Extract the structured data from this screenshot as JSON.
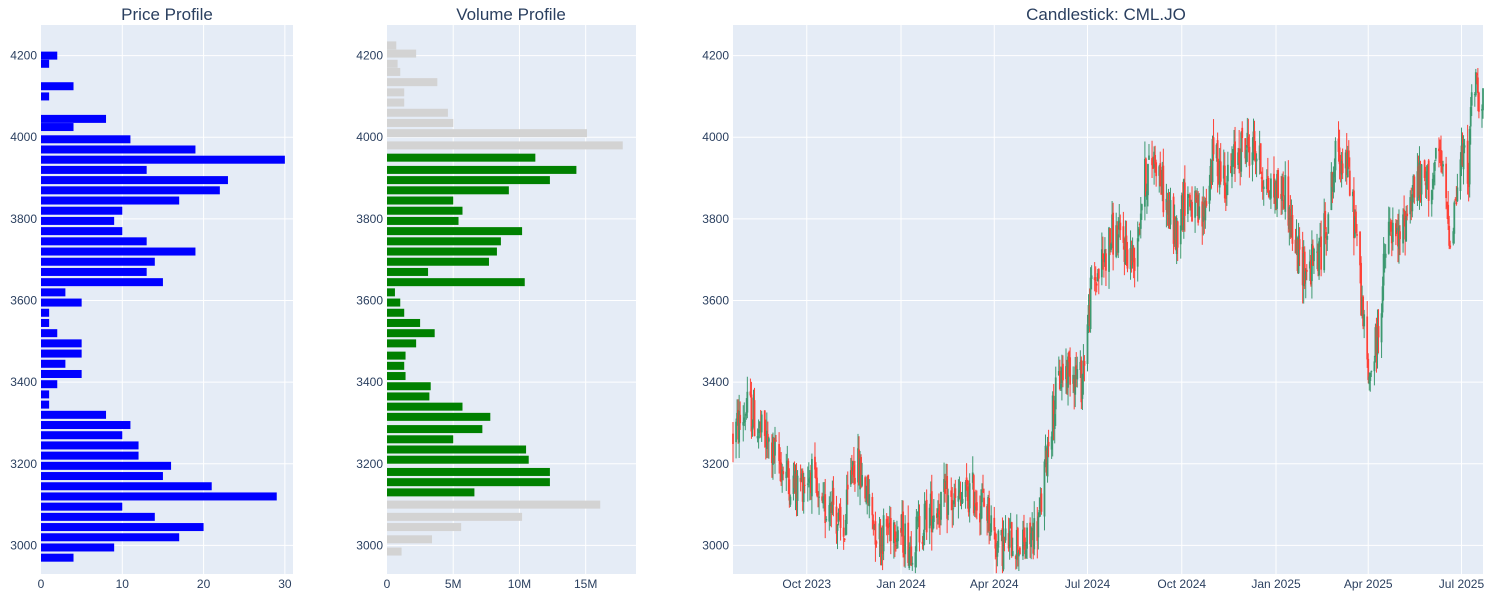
{
  "chart_data": [
    {
      "type": "bar",
      "orientation": "horizontal",
      "title": "Price Profile",
      "ylim": [
        2930,
        4275
      ],
      "xlim": [
        0,
        31
      ],
      "x_ticks": [
        0,
        10,
        20,
        30
      ],
      "y_ticks": [
        3000,
        3200,
        3400,
        3600,
        3800,
        4000,
        4200
      ],
      "color": "#0000ff",
      "categories": [
        4200,
        4180,
        4125,
        4100,
        4045,
        4025,
        3995,
        3970,
        3945,
        3920,
        3895,
        3870,
        3845,
        3820,
        3795,
        3770,
        3745,
        3720,
        3695,
        3670,
        3645,
        3620,
        3595,
        3570,
        3545,
        3520,
        3495,
        3470,
        3445,
        3420,
        3395,
        3370,
        3345,
        3320,
        3295,
        3270,
        3245,
        3220,
        3195,
        3170,
        3145,
        3120,
        3095,
        3070,
        3045,
        3020,
        2995,
        2970,
        2945
      ],
      "values": [
        2,
        1,
        4,
        1,
        8,
        4,
        11,
        19,
        30,
        13,
        23,
        22,
        17,
        10,
        9,
        10,
        13,
        19,
        14,
        13,
        15,
        3,
        5,
        1,
        1,
        2,
        5,
        5,
        3,
        5,
        2,
        1,
        1,
        8,
        11,
        10,
        12,
        12,
        16,
        15,
        21,
        29,
        10,
        14,
        20,
        17,
        9,
        4,
        0
      ]
    },
    {
      "type": "bar",
      "orientation": "horizontal",
      "title": "Volume Profile",
      "ylim": [
        2930,
        4275
      ],
      "xlim": [
        0,
        18800000
      ],
      "x_ticks": [
        0,
        5000000,
        10000000,
        15000000
      ],
      "x_tick_labels": [
        "0",
        "5M",
        "10M",
        "15M"
      ],
      "y_ticks": [
        3000,
        3200,
        3400,
        3600,
        3800,
        4000,
        4200
      ],
      "colors": {
        "value_area": "#008000",
        "outside": "#d3d3d3"
      },
      "categories": [
        4225,
        4205,
        4180,
        4160,
        4135,
        4110,
        4085,
        4060,
        4035,
        4010,
        3980,
        3950,
        3920,
        3895,
        3870,
        3845,
        3820,
        3795,
        3770,
        3745,
        3720,
        3695,
        3670,
        3645,
        3620,
        3595,
        3570,
        3545,
        3520,
        3495,
        3465,
        3440,
        3415,
        3390,
        3365,
        3340,
        3315,
        3285,
        3260,
        3235,
        3210,
        3180,
        3155,
        3130,
        3100,
        3070,
        3045,
        3015,
        2985,
        2960,
        2935
      ],
      "values": [
        700000,
        2200000,
        800000,
        1000000,
        3800000,
        1300000,
        1300000,
        4600000,
        5000000,
        15100000,
        17800000,
        11200000,
        14300000,
        12300000,
        9200000,
        5000000,
        5700000,
        5400000,
        10200000,
        8600000,
        8300000,
        7700000,
        3100000,
        10400000,
        600000,
        1000000,
        1300000,
        2500000,
        3600000,
        2200000,
        1400000,
        1300000,
        1400000,
        3300000,
        3200000,
        5700000,
        7800000,
        7200000,
        5000000,
        10500000,
        10700000,
        12300000,
        12300000,
        6600000,
        16100000,
        10200000,
        5600000,
        3400000,
        1100000,
        0,
        0
      ],
      "in_value_area": [
        false,
        false,
        false,
        false,
        false,
        false,
        false,
        false,
        false,
        false,
        false,
        true,
        true,
        true,
        true,
        true,
        true,
        true,
        true,
        true,
        true,
        true,
        true,
        true,
        true,
        true,
        true,
        true,
        true,
        true,
        true,
        true,
        true,
        true,
        true,
        true,
        true,
        true,
        true,
        true,
        true,
        true,
        true,
        true,
        false,
        false,
        false,
        false,
        false,
        false,
        false
      ]
    },
    {
      "type": "candlestick",
      "title": "Candlestick: CML.JO",
      "ylim": [
        2930,
        4275
      ],
      "xlim": [
        "2023-07-21",
        "2025-07-22"
      ],
      "x_ticks": [
        "2023-10-01",
        "2024-01-01",
        "2024-04-01",
        "2024-07-01",
        "2024-10-01",
        "2025-01-01",
        "2025-04-01",
        "2025-07-01"
      ],
      "x_tick_labels": [
        "Oct 2023",
        "Jan 2024",
        "Apr 2024",
        "Jul 2024",
        "Oct 2024",
        "Jan 2025",
        "Apr 2025",
        "Jul 2025"
      ],
      "y_ticks": [
        3000,
        3200,
        3400,
        3600,
        3800,
        4000,
        4200
      ],
      "increasing_color": "#3d9970",
      "decreasing_color": "#ff4136",
      "series_start": "2023-07-21",
      "anchors": [
        [
          "2023-07-21",
          3270
        ],
        [
          "2023-08-05",
          3340
        ],
        [
          "2023-08-20",
          3260
        ],
        [
          "2023-09-05",
          3200
        ],
        [
          "2023-09-20",
          3140
        ],
        [
          "2023-10-05",
          3180
        ],
        [
          "2023-10-15",
          3060
        ],
        [
          "2023-10-25",
          3130
        ],
        [
          "2023-11-05",
          3000
        ],
        [
          "2023-11-15",
          3210
        ],
        [
          "2023-11-25",
          3160
        ],
        [
          "2023-12-10",
          3020
        ],
        [
          "2023-12-25",
          3060
        ],
        [
          "2024-01-10",
          3000
        ],
        [
          "2024-01-25",
          3070
        ],
        [
          "2024-02-10",
          3110
        ],
        [
          "2024-02-25",
          3100
        ],
        [
          "2024-03-10",
          3130
        ],
        [
          "2024-03-25",
          3090
        ],
        [
          "2024-04-05",
          2990
        ],
        [
          "2024-04-20",
          3020
        ],
        [
          "2024-05-01",
          2990
        ],
        [
          "2024-05-15",
          3060
        ],
        [
          "2024-05-25",
          3290
        ],
        [
          "2024-06-05",
          3420
        ],
        [
          "2024-06-15",
          3440
        ],
        [
          "2024-06-25",
          3400
        ],
        [
          "2024-07-05",
          3630
        ],
        [
          "2024-07-15",
          3690
        ],
        [
          "2024-07-25",
          3760
        ],
        [
          "2024-08-05",
          3740
        ],
        [
          "2024-08-15",
          3700
        ],
        [
          "2024-08-25",
          3890
        ],
        [
          "2024-09-05",
          3960
        ],
        [
          "2024-09-15",
          3840
        ],
        [
          "2024-09-25",
          3760
        ],
        [
          "2024-10-05",
          3870
        ],
        [
          "2024-10-20",
          3780
        ],
        [
          "2024-11-01",
          3960
        ],
        [
          "2024-11-15",
          3890
        ],
        [
          "2024-11-25",
          3970
        ],
        [
          "2024-12-10",
          3980
        ],
        [
          "2024-12-25",
          3870
        ],
        [
          "2025-01-10",
          3870
        ],
        [
          "2025-01-20",
          3720
        ],
        [
          "2025-02-01",
          3670
        ],
        [
          "2025-02-15",
          3730
        ],
        [
          "2025-03-01",
          3960
        ],
        [
          "2025-03-10",
          3950
        ],
        [
          "2025-03-20",
          3770
        ],
        [
          "2025-04-01",
          3400
        ],
        [
          "2025-04-10",
          3510
        ],
        [
          "2025-04-20",
          3770
        ],
        [
          "2025-05-01",
          3740
        ],
        [
          "2025-05-15",
          3880
        ],
        [
          "2025-06-01",
          3890
        ],
        [
          "2025-06-10",
          3950
        ],
        [
          "2025-06-20",
          3760
        ],
        [
          "2025-07-01",
          3950
        ],
        [
          "2025-07-08",
          3930
        ],
        [
          "2025-07-12",
          4140
        ],
        [
          "2025-07-22",
          4100
        ]
      ]
    }
  ]
}
